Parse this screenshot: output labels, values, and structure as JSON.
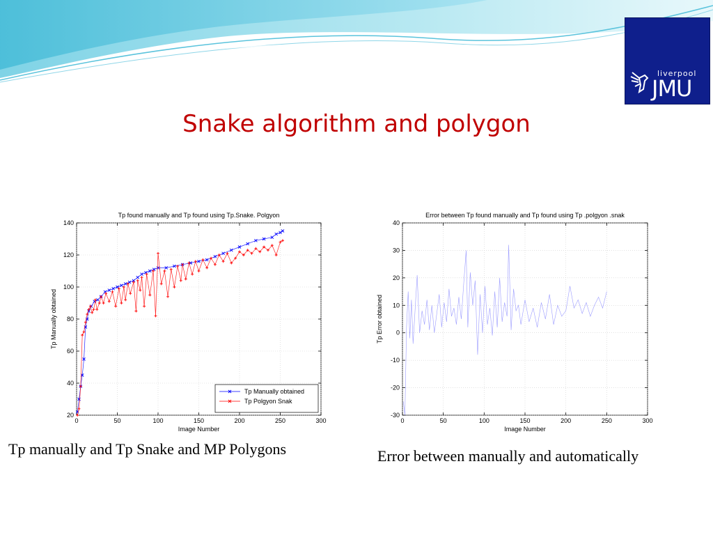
{
  "slide": {
    "title": "Snake algorithm and polygon",
    "logo": {
      "small_text": "liverpool",
      "big_text": "JMU"
    },
    "captions": [
      "Tp manually and Tp Snake and MP Polygons",
      "Error between manually and automatically"
    ]
  },
  "colors": {
    "title": "#c00000",
    "series_manual": "#0000ff",
    "series_polygon": "#ff0000",
    "logo_bg": "#0f1f8c"
  },
  "chart_data": [
    {
      "type": "line",
      "title": "Tp found manually and Tp found using Tp.Snake. Polgyon",
      "xlabel": "Image Number",
      "ylabel": "Tp Manually obtained",
      "xlim": [
        0,
        300
      ],
      "ylim": [
        20,
        140
      ],
      "xticks": [
        0,
        50,
        100,
        150,
        200,
        250,
        300
      ],
      "yticks": [
        20,
        40,
        60,
        80,
        100,
        120,
        140
      ],
      "grid": true,
      "legend_position": "bottom-right",
      "series": [
        {
          "name": "Tp Manually obtained",
          "marker": "x",
          "x": [
            1,
            3,
            5,
            7,
            9,
            11,
            13,
            15,
            18,
            22,
            26,
            30,
            35,
            40,
            45,
            50,
            55,
            60,
            65,
            70,
            75,
            80,
            85,
            90,
            95,
            100,
            110,
            120,
            130,
            140,
            150,
            160,
            170,
            180,
            190,
            200,
            210,
            220,
            230,
            240,
            245,
            250,
            253
          ],
          "values": [
            22,
            30,
            38,
            45,
            55,
            75,
            80,
            85,
            88,
            91,
            92,
            94,
            97,
            98,
            99,
            100,
            101,
            102,
            103,
            104,
            106,
            108,
            109,
            110,
            111,
            112,
            112,
            113,
            114,
            115,
            116,
            117,
            119,
            121,
            123,
            125,
            127,
            129,
            130,
            131,
            133,
            134,
            135
          ]
        },
        {
          "name": "Tp Polgyon Snak",
          "marker": "+",
          "x": [
            1,
            3,
            5,
            7,
            9,
            11,
            13,
            15,
            17,
            19,
            21,
            23,
            25,
            28,
            30,
            33,
            36,
            40,
            44,
            48,
            52,
            55,
            58,
            60,
            63,
            66,
            70,
            73,
            75,
            78,
            80,
            83,
            86,
            90,
            94,
            97,
            100,
            104,
            108,
            112,
            116,
            120,
            124,
            128,
            130,
            134,
            138,
            142,
            146,
            150,
            155,
            160,
            165,
            170,
            175,
            180,
            185,
            190,
            195,
            200,
            205,
            210,
            215,
            220,
            225,
            230,
            235,
            240,
            245,
            250,
            253
          ],
          "values": [
            20,
            24,
            38,
            70,
            72,
            78,
            83,
            86,
            88,
            84,
            86,
            92,
            86,
            90,
            94,
            90,
            96,
            91,
            97,
            88,
            99,
            90,
            100,
            92,
            102,
            96,
            103,
            85,
            104,
            98,
            106,
            88,
            108,
            95,
            110,
            82,
            121,
            102,
            110,
            94,
            111,
            100,
            113,
            104,
            114,
            105,
            115,
            108,
            116,
            110,
            117,
            112,
            118,
            114,
            120,
            116,
            121,
            115,
            118,
            122,
            120,
            123,
            121,
            124,
            122,
            125,
            123,
            126,
            120,
            128,
            129
          ]
        }
      ]
    },
    {
      "type": "line",
      "title": "Error between Tp found manually and Tp found using   Tp .polgyon .snak",
      "xlabel": "Image Number",
      "ylabel": "Tp Error obtained",
      "xlim": [
        0,
        300
      ],
      "ylim": [
        -30,
        40
      ],
      "xticks": [
        0,
        50,
        100,
        150,
        200,
        250,
        300
      ],
      "yticks": [
        -30,
        -20,
        -10,
        0,
        10,
        20,
        30,
        40
      ],
      "grid": true,
      "series": [
        {
          "name": "",
          "x": [
            1,
            3,
            5,
            7,
            9,
            11,
            13,
            15,
            18,
            21,
            24,
            27,
            30,
            33,
            36,
            39,
            42,
            45,
            48,
            51,
            54,
            57,
            60,
            63,
            66,
            69,
            72,
            75,
            78,
            80,
            83,
            86,
            89,
            92,
            95,
            98,
            101,
            104,
            107,
            110,
            113,
            116,
            119,
            122,
            125,
            128,
            130,
            133,
            136,
            139,
            142,
            145,
            150,
            155,
            160,
            165,
            170,
            175,
            180,
            185,
            190,
            195,
            200,
            205,
            210,
            215,
            220,
            225,
            230,
            235,
            240,
            245,
            250
          ],
          "values": [
            -25,
            -30,
            2,
            15,
            -2,
            12,
            -4,
            6,
            21,
            0,
            8,
            3,
            12,
            1,
            10,
            0,
            7,
            14,
            2,
            11,
            4,
            16,
            6,
            9,
            3,
            13,
            5,
            18,
            30,
            2,
            22,
            10,
            19,
            -8,
            14,
            0,
            17,
            3,
            9,
            -1,
            15,
            2,
            20,
            4,
            11,
            6,
            32,
            1,
            16,
            8,
            10,
            3,
            12,
            4,
            9,
            2,
            11,
            5,
            14,
            3,
            10,
            6,
            8,
            17,
            9,
            12,
            7,
            11,
            6,
            10,
            13,
            9,
            15
          ]
        }
      ]
    }
  ]
}
